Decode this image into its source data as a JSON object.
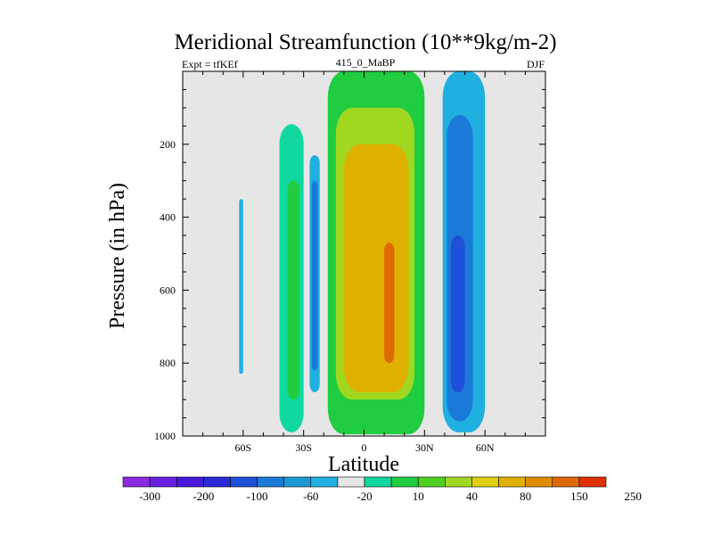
{
  "title": "Meridional Streamfunction (10**9kg/m-2)",
  "subtitle_left": "Expt = tfKEf",
  "subtitle_center": "415_0_MaBP",
  "subtitle_right": "DJF",
  "xlabel": "Latitude",
  "ylabel": "Pressure (in hPa)",
  "colors": {
    "background_missing": "#e6e6e6",
    "axis": "#000000"
  },
  "chart_data": {
    "type": "heatmap",
    "title": "Meridional Streamfunction (10**9kg/m-2)",
    "xlabel": "Latitude",
    "ylabel": "Pressure (in hPa)",
    "x_axis": {
      "range": [
        -90,
        90
      ],
      "ticks": [
        {
          "value": -60,
          "label": "60S"
        },
        {
          "value": -30,
          "label": "30S"
        },
        {
          "value": 0,
          "label": "0"
        },
        {
          "value": 30,
          "label": "30N"
        },
        {
          "value": 60,
          "label": "60N"
        }
      ]
    },
    "y_axis": {
      "range": [
        0,
        1000
      ],
      "inverted": true,
      "unit": "hPa",
      "ticks": [
        {
          "value": 200,
          "label": "200"
        },
        {
          "value": 400,
          "label": "400"
        },
        {
          "value": 600,
          "label": "600"
        },
        {
          "value": 800,
          "label": "800"
        },
        {
          "value": 1000,
          "label": "1000"
        }
      ]
    },
    "colorbar": {
      "colors": [
        "#8a2be2",
        "#6a20e0",
        "#4818dd",
        "#2a2ad8",
        "#1e50d8",
        "#1a7ad8",
        "#1c9ad8",
        "#20b0e0",
        "#e6e6e6",
        "#10d8a0",
        "#20cc40",
        "#50d020",
        "#a0d820",
        "#e0d010",
        "#e0b000",
        "#e08c00",
        "#e06800",
        "#e03000"
      ],
      "labels": [
        "-300",
        "-200",
        "-100",
        "-60",
        "-20",
        "10",
        "40",
        "80",
        "150",
        "250"
      ]
    },
    "cells": [
      {
        "lat": [
          -62,
          -60
        ],
        "p": [
          350,
          830
        ],
        "level": -20
      },
      {
        "lat": [
          -42,
          -30
        ],
        "p": [
          145,
          990
        ],
        "level": 10
      },
      {
        "lat": [
          -38,
          -32
        ],
        "p": [
          300,
          900
        ],
        "level": 40
      },
      {
        "lat": [
          -27,
          -22
        ],
        "p": [
          230,
          880
        ],
        "level": -20
      },
      {
        "lat": [
          -26,
          -23
        ],
        "p": [
          300,
          820
        ],
        "level": -60
      },
      {
        "lat": [
          -18,
          30
        ],
        "p": [
          0,
          995
        ],
        "level": 40
      },
      {
        "lat": [
          -14,
          25
        ],
        "p": [
          100,
          900
        ],
        "level": 80
      },
      {
        "lat": [
          -10,
          22
        ],
        "p": [
          200,
          880
        ],
        "level": 150
      },
      {
        "lat": [
          3,
          21
        ],
        "p": [
          200,
          860
        ],
        "level": 150
      },
      {
        "lat": [
          10,
          15
        ],
        "p": [
          470,
          800
        ],
        "level": 250
      },
      {
        "lat": [
          39,
          60
        ],
        "p": [
          0,
          990
        ],
        "level": -20
      },
      {
        "lat": [
          41,
          54
        ],
        "p": [
          120,
          960
        ],
        "level": -60
      },
      {
        "lat": [
          43,
          50
        ],
        "p": [
          450,
          880
        ],
        "level": -100
      }
    ]
  }
}
